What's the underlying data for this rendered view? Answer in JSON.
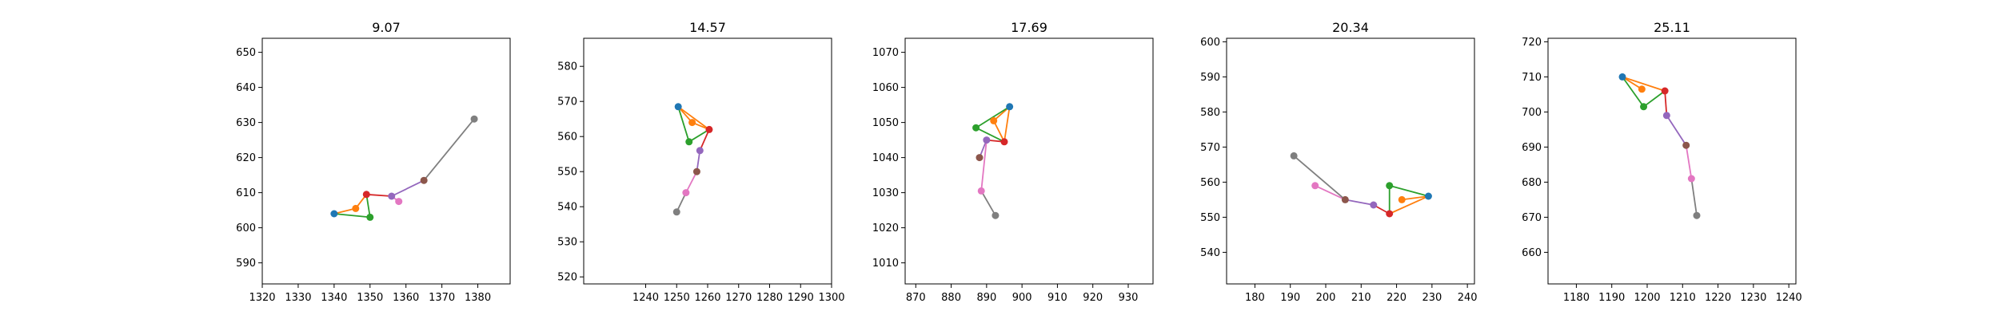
{
  "chart_data": [
    {
      "type": "line",
      "title": "9.07",
      "xlim": [
        1320,
        1389
      ],
      "ylim": [
        584,
        654
      ],
      "xticks": [
        1320,
        1330,
        1340,
        1350,
        1360,
        1370,
        1380
      ],
      "yticks": [
        590,
        600,
        610,
        620,
        630,
        640,
        650
      ],
      "points": [
        {
          "name": "p0",
          "x": 1340,
          "y": 604,
          "color": "#1f77b4"
        },
        {
          "name": "p1",
          "x": 1346,
          "y": 605.5,
          "color": "#ff7f0e"
        },
        {
          "name": "p2",
          "x": 1350,
          "y": 603,
          "color": "#2ca02c"
        },
        {
          "name": "p3",
          "x": 1349,
          "y": 609.5,
          "color": "#d62728"
        },
        {
          "name": "p4",
          "x": 1356,
          "y": 609,
          "color": "#9467bd"
        },
        {
          "name": "p5",
          "x": 1365,
          "y": 613.5,
          "color": "#8c564b"
        },
        {
          "name": "p6",
          "x": 1358,
          "y": 607.5,
          "color": "#e377c2"
        },
        {
          "name": "p7",
          "x": 1379,
          "y": 631,
          "color": "#7f7f7f"
        }
      ],
      "segments": [
        {
          "from": "p0",
          "to": "p1",
          "color": "#ff7f0e"
        },
        {
          "from": "p1",
          "to": "p3",
          "color": "#ff7f0e"
        },
        {
          "from": "p0",
          "to": "p2",
          "color": "#2ca02c"
        },
        {
          "from": "p2",
          "to": "p3",
          "color": "#2ca02c"
        },
        {
          "from": "p3",
          "to": "p4",
          "color": "#d62728"
        },
        {
          "from": "p4",
          "to": "p5",
          "color": "#9467bd"
        },
        {
          "from": "p4",
          "to": "p6",
          "color": "#e377c2"
        },
        {
          "from": "p5",
          "to": "p7",
          "color": "#7f7f7f"
        }
      ]
    },
    {
      "type": "line",
      "title": "14.57",
      "xlim": [
        1220,
        1300
      ],
      "ylim": [
        518,
        588
      ],
      "xticks": [
        1240,
        1250,
        1260,
        1270,
        1280,
        1290,
        1300
      ],
      "yticks": [
        520,
        530,
        540,
        550,
        560,
        570,
        580
      ],
      "points": [
        {
          "name": "p0",
          "x": 1250.5,
          "y": 568.5,
          "color": "#1f77b4"
        },
        {
          "name": "p1",
          "x": 1255,
          "y": 564,
          "color": "#ff7f0e"
        },
        {
          "name": "p2",
          "x": 1254,
          "y": 558.5,
          "color": "#2ca02c"
        },
        {
          "name": "p3",
          "x": 1260.5,
          "y": 562,
          "color": "#d62728"
        },
        {
          "name": "p4",
          "x": 1257.5,
          "y": 556,
          "color": "#9467bd"
        },
        {
          "name": "p5",
          "x": 1256.5,
          "y": 550,
          "color": "#8c564b"
        },
        {
          "name": "p6",
          "x": 1253,
          "y": 544,
          "color": "#e377c2"
        },
        {
          "name": "p7",
          "x": 1250,
          "y": 538.5,
          "color": "#7f7f7f"
        }
      ],
      "segments": [
        {
          "from": "p0",
          "to": "p1",
          "color": "#ff7f0e"
        },
        {
          "from": "p1",
          "to": "p3",
          "color": "#ff7f0e"
        },
        {
          "from": "p0",
          "to": "p3",
          "color": "#ff7f0e"
        },
        {
          "from": "p0",
          "to": "p2",
          "color": "#2ca02c"
        },
        {
          "from": "p2",
          "to": "p3",
          "color": "#2ca02c"
        },
        {
          "from": "p3",
          "to": "p4",
          "color": "#d62728"
        },
        {
          "from": "p4",
          "to": "p5",
          "color": "#9467bd"
        },
        {
          "from": "p5",
          "to": "p6",
          "color": "#e377c2"
        },
        {
          "from": "p6",
          "to": "p7",
          "color": "#7f7f7f"
        }
      ]
    },
    {
      "type": "line",
      "title": "17.69",
      "xlim": [
        867,
        937
      ],
      "ylim": [
        1004,
        1074
      ],
      "xticks": [
        870,
        880,
        890,
        900,
        910,
        920,
        930
      ],
      "yticks": [
        1010,
        1020,
        1030,
        1040,
        1050,
        1060,
        1070
      ],
      "points": [
        {
          "name": "p0",
          "x": 896.5,
          "y": 1054.5,
          "color": "#1f77b4"
        },
        {
          "name": "p1",
          "x": 892,
          "y": 1050.5,
          "color": "#ff7f0e"
        },
        {
          "name": "p2",
          "x": 887,
          "y": 1048.5,
          "color": "#2ca02c"
        },
        {
          "name": "p3",
          "x": 895,
          "y": 1044.5,
          "color": "#d62728"
        },
        {
          "name": "p4",
          "x": 890,
          "y": 1045,
          "color": "#9467bd"
        },
        {
          "name": "p5",
          "x": 888,
          "y": 1040,
          "color": "#8c564b"
        },
        {
          "name": "p6",
          "x": 888.5,
          "y": 1030.5,
          "color": "#e377c2"
        },
        {
          "name": "p7",
          "x": 892.5,
          "y": 1023.5,
          "color": "#7f7f7f"
        }
      ],
      "segments": [
        {
          "from": "p0",
          "to": "p1",
          "color": "#ff7f0e"
        },
        {
          "from": "p1",
          "to": "p3",
          "color": "#ff7f0e"
        },
        {
          "from": "p0",
          "to": "p3",
          "color": "#ff7f0e"
        },
        {
          "from": "p0",
          "to": "p2",
          "color": "#2ca02c"
        },
        {
          "from": "p2",
          "to": "p3",
          "color": "#2ca02c"
        },
        {
          "from": "p3",
          "to": "p4",
          "color": "#d62728"
        },
        {
          "from": "p4",
          "to": "p5",
          "color": "#9467bd"
        },
        {
          "from": "p4",
          "to": "p6",
          "color": "#e377c2"
        },
        {
          "from": "p6",
          "to": "p7",
          "color": "#7f7f7f"
        }
      ]
    },
    {
      "type": "line",
      "title": "20.34",
      "xlim": [
        172,
        242
      ],
      "ylim": [
        531,
        601
      ],
      "xticks": [
        180,
        190,
        200,
        210,
        220,
        230,
        240
      ],
      "yticks": [
        540,
        550,
        560,
        570,
        580,
        590,
        600
      ],
      "points": [
        {
          "name": "p0",
          "x": 229,
          "y": 556,
          "color": "#1f77b4"
        },
        {
          "name": "p1",
          "x": 221.5,
          "y": 555,
          "color": "#ff7f0e"
        },
        {
          "name": "p2",
          "x": 218,
          "y": 559,
          "color": "#2ca02c"
        },
        {
          "name": "p3",
          "x": 218,
          "y": 551,
          "color": "#d62728"
        },
        {
          "name": "p4",
          "x": 213.5,
          "y": 553.5,
          "color": "#9467bd"
        },
        {
          "name": "p5",
          "x": 205.5,
          "y": 555,
          "color": "#8c564b"
        },
        {
          "name": "p6",
          "x": 197,
          "y": 559,
          "color": "#e377c2"
        },
        {
          "name": "p7",
          "x": 191,
          "y": 567.5,
          "color": "#7f7f7f"
        }
      ],
      "segments": [
        {
          "from": "p0",
          "to": "p1",
          "color": "#ff7f0e"
        },
        {
          "from": "p0",
          "to": "p3",
          "color": "#ff7f0e"
        },
        {
          "from": "p0",
          "to": "p2",
          "color": "#2ca02c"
        },
        {
          "from": "p2",
          "to": "p3",
          "color": "#2ca02c"
        },
        {
          "from": "p3",
          "to": "p4",
          "color": "#d62728"
        },
        {
          "from": "p4",
          "to": "p5",
          "color": "#9467bd"
        },
        {
          "from": "p5",
          "to": "p6",
          "color": "#e377c2"
        },
        {
          "from": "p5",
          "to": "p7",
          "color": "#7f7f7f"
        }
      ]
    },
    {
      "type": "line",
      "title": "25.11",
      "xlim": [
        1172,
        1242
      ],
      "ylim": [
        651,
        721
      ],
      "xticks": [
        1180,
        1190,
        1200,
        1210,
        1220,
        1230,
        1240
      ],
      "yticks": [
        660,
        670,
        680,
        690,
        700,
        710,
        720
      ],
      "points": [
        {
          "name": "p0",
          "x": 1193,
          "y": 710,
          "color": "#1f77b4"
        },
        {
          "name": "p1",
          "x": 1198.5,
          "y": 706.5,
          "color": "#ff7f0e"
        },
        {
          "name": "p2",
          "x": 1199,
          "y": 701.5,
          "color": "#2ca02c"
        },
        {
          "name": "p3",
          "x": 1205,
          "y": 706,
          "color": "#d62728"
        },
        {
          "name": "p4",
          "x": 1205.5,
          "y": 699,
          "color": "#9467bd"
        },
        {
          "name": "p5",
          "x": 1211,
          "y": 690.5,
          "color": "#8c564b"
        },
        {
          "name": "p6",
          "x": 1212.5,
          "y": 681,
          "color": "#e377c2"
        },
        {
          "name": "p7",
          "x": 1214,
          "y": 670.5,
          "color": "#7f7f7f"
        }
      ],
      "segments": [
        {
          "from": "p0",
          "to": "p1",
          "color": "#ff7f0e"
        },
        {
          "from": "p0",
          "to": "p3",
          "color": "#ff7f0e"
        },
        {
          "from": "p0",
          "to": "p2",
          "color": "#2ca02c"
        },
        {
          "from": "p2",
          "to": "p3",
          "color": "#2ca02c"
        },
        {
          "from": "p3",
          "to": "p4",
          "color": "#d62728"
        },
        {
          "from": "p4",
          "to": "p5",
          "color": "#9467bd"
        },
        {
          "from": "p5",
          "to": "p6",
          "color": "#e377c2"
        },
        {
          "from": "p6",
          "to": "p7",
          "color": "#7f7f7f"
        }
      ]
    }
  ]
}
